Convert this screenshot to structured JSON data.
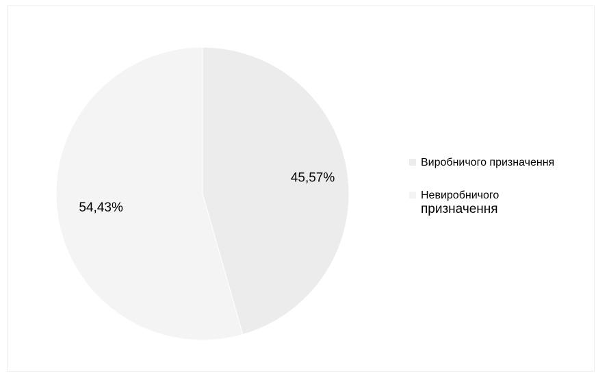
{
  "chart_data": {
    "type": "pie",
    "title": "",
    "slices": [
      {
        "label": "Виробничого призначення",
        "value": 45.57,
        "display": "45,57%",
        "color": "#ececec"
      },
      {
        "label_line1": "Невиробничого",
        "label_line2": "призначення",
        "label": "Невиробничого призначення",
        "value": 54.43,
        "display": "54,43%",
        "color": "#f4f4f4"
      }
    ],
    "legend_position": "right",
    "start_angle_deg": 0,
    "direction": "clockwise"
  },
  "legend": {
    "item1": "Виробничого призначення",
    "item2_line1": "Невиробничого",
    "item2_line2": "призначення"
  }
}
